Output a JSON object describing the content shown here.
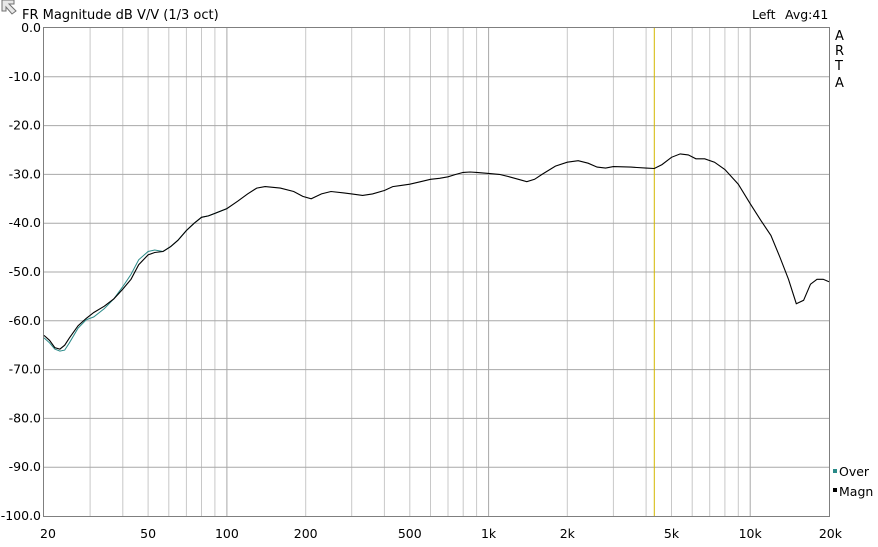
{
  "app": {
    "title": "FR Magnitude dB V/V (1/3 oct)",
    "channel_label": "Left",
    "average_label": "Avg:41",
    "side_label_letters": [
      "A",
      "R",
      "T",
      "A"
    ]
  },
  "colors": {
    "magnitude": "#000000",
    "overlay": "#2a8a88",
    "cursor": "#d4b800",
    "grid": "#a8a8a8",
    "grid_minor": "#c8c8c8"
  },
  "chart_data": {
    "type": "line",
    "title": "FR Magnitude dB V/V (1/3 oct)",
    "xlabel": "",
    "ylabel": "",
    "x_scale": "log",
    "xlim": [
      20,
      20000
    ],
    "ylim": [
      -100,
      0
    ],
    "grid": true,
    "x_tick_values": [
      20,
      50,
      100,
      200,
      500,
      1000,
      2000,
      5000,
      10000,
      20000
    ],
    "x_tick_labels": [
      "20",
      "50",
      "100",
      "200",
      "500",
      "1k",
      "2k",
      "5k",
      "10k",
      "20k"
    ],
    "y_tick_values": [
      0,
      -10,
      -20,
      -30,
      -40,
      -50,
      -60,
      -70,
      -80,
      -90,
      -100
    ],
    "y_tick_labels": [
      "0.0",
      "-10.0",
      "-20.0",
      "-30.0",
      "-40.0",
      "-50.0",
      "-60.0",
      "-70.0",
      "-80.0",
      "-90.0",
      "-100.0"
    ],
    "cursor_x": 4300,
    "legend": {
      "placement": "bottom-right",
      "entries": [
        {
          "name": "Over",
          "color": "#2a8a88"
        },
        {
          "name": "Magn",
          "color": "#000000"
        }
      ]
    },
    "series": [
      {
        "name": "Magn",
        "color": "#000000",
        "x": [
          20,
          21,
          22,
          23,
          24,
          25,
          27,
          29,
          31,
          34,
          37,
          40,
          43,
          46,
          50,
          53,
          57,
          61,
          65,
          70,
          75,
          80,
          85,
          90,
          100,
          110,
          120,
          130,
          140,
          160,
          180,
          195,
          210,
          230,
          250,
          280,
          300,
          330,
          360,
          400,
          430,
          460,
          500,
          550,
          600,
          650,
          700,
          750,
          800,
          850,
          900,
          1000,
          1100,
          1200,
          1300,
          1400,
          1500,
          1600,
          1800,
          2000,
          2200,
          2400,
          2600,
          2800,
          3000,
          3500,
          4000,
          4300,
          4600,
          5000,
          5400,
          5800,
          6200,
          6700,
          7300,
          8000,
          9000,
          10000,
          11000,
          12000,
          13000,
          14000,
          15000,
          16000,
          17000,
          18000,
          19000,
          20000
        ],
        "y": [
          -63.0,
          -64.0,
          -65.5,
          -65.8,
          -65.0,
          -63.5,
          -61.0,
          -59.5,
          -58.3,
          -57.0,
          -55.5,
          -53.5,
          -51.5,
          -48.5,
          -46.5,
          -46.0,
          -45.8,
          -44.8,
          -43.5,
          -41.5,
          -40.0,
          -38.8,
          -38.5,
          -38.0,
          -37.0,
          -35.5,
          -34.0,
          -32.8,
          -32.5,
          -32.8,
          -33.5,
          -34.5,
          -35.0,
          -34.0,
          -33.5,
          -33.8,
          -34.0,
          -34.3,
          -34.0,
          -33.3,
          -32.5,
          -32.3,
          -32.0,
          -31.5,
          -31.0,
          -30.8,
          -30.5,
          -30.0,
          -29.6,
          -29.5,
          -29.6,
          -29.8,
          -30.0,
          -30.5,
          -31.0,
          -31.5,
          -31.0,
          -30.0,
          -28.3,
          -27.5,
          -27.2,
          -27.7,
          -28.5,
          -28.7,
          -28.4,
          -28.5,
          -28.7,
          -28.8,
          -28.0,
          -26.5,
          -25.8,
          -26.0,
          -26.8,
          -26.8,
          -27.5,
          -29.0,
          -32.0,
          -36.0,
          -39.5,
          -42.5,
          -47.0,
          -51.5,
          -56.5,
          -55.8,
          -52.5,
          -51.5,
          -51.5,
          -52.0
        ]
      },
      {
        "name": "Over",
        "color": "#2a8a88",
        "x": [
          20,
          21,
          22,
          23,
          24,
          25,
          27,
          29,
          31,
          34,
          37,
          40,
          43,
          46,
          50,
          53,
          57,
          61,
          65,
          70,
          75,
          80,
          85,
          90,
          100
        ],
        "y": [
          -63.5,
          -64.5,
          -65.8,
          -66.2,
          -66.0,
          -64.5,
          -61.5,
          -59.8,
          -59.2,
          -57.5,
          -55.5,
          -53.0,
          -50.5,
          -47.5,
          -45.8,
          -45.5,
          -45.8,
          -44.8,
          -43.5,
          -41.5,
          -40.0,
          -38.8,
          -38.5,
          -38.0,
          -37.0
        ]
      }
    ]
  }
}
